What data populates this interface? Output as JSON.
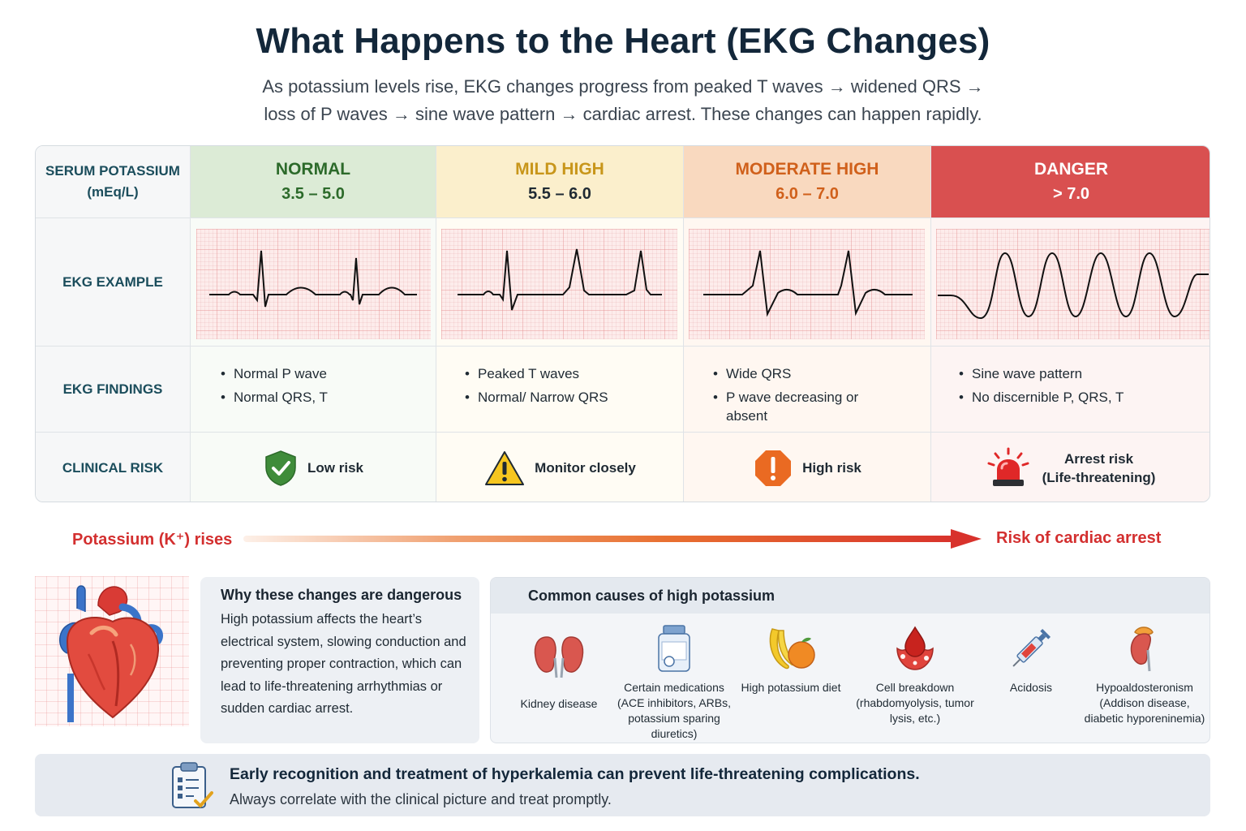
{
  "title": "What Happens to the Heart (EKG Changes)",
  "subtitle_line1": "As potassium levels rise, EKG changes progress from peaked T waves → widened QRS →",
  "subtitle_line2": "loss of P waves → sine wave pattern → cardiac arrest. These changes can happen rapidly.",
  "row_labels": {
    "potassium_line1": "SERUM POTASSIUM",
    "potassium_line2": "(mEq/L)",
    "ekg_example": "EKG EXAMPLE",
    "ekg_findings": "EKG FINDINGS",
    "clinical_risk": "CLINICAL RISK"
  },
  "stages": [
    {
      "level": "NORMAL",
      "range": "3.5 – 5.0",
      "findings": [
        "Normal P wave",
        "Normal QRS, T"
      ],
      "risk": "Low risk",
      "icon": "shield-check-icon"
    },
    {
      "level": "MILD HIGH",
      "range": "5.5 – 6.0",
      "findings": [
        "Peaked T waves",
        "Normal/ Narrow QRS"
      ],
      "risk": "Monitor closely",
      "icon": "warning-triangle-icon"
    },
    {
      "level": "MODERATE HIGH",
      "range": "6.0 – 7.0",
      "findings": [
        "Wide QRS",
        "P wave decreasing or absent"
      ],
      "risk": "High risk",
      "icon": "alert-octagon-icon"
    },
    {
      "level": "DANGER",
      "range": "> 7.0",
      "findings": [
        "Sine wave pattern",
        "No discernible P, QRS, T"
      ],
      "risk_line1": "Arrest risk",
      "risk_line2": "(Life-threatening)",
      "icon": "alarm-siren-icon"
    }
  ],
  "stage_colors": {
    "normal": "#2c6a2a",
    "mild": "#c8961a",
    "moderate": "#d0601b",
    "danger": "#d95050"
  },
  "arrow": {
    "left": "Potassium (K⁺) rises",
    "right": "Risk of cardiac arrest"
  },
  "why": {
    "title": "Why these changes are dangerous",
    "body": "High potassium affects the heart’s electrical system, slowing conduction and preventing proper contraction, which can lead to life-threatening arrhythmias or sudden cardiac arrest."
  },
  "causes": {
    "title": "Common causes of high potassium",
    "items": [
      {
        "label": "Kidney disease",
        "icon": "kidneys-icon"
      },
      {
        "label": "Certain medications (ACE inhibitors, ARBs, potassium sparing diuretics)",
        "icon": "medication-bottle-icon"
      },
      {
        "label": "High potassium diet",
        "icon": "fruit-icon"
      },
      {
        "label": "Cell breakdown (rhabdomyolysis, tumor lysis, etc.)",
        "icon": "cell-breakdown-icon"
      },
      {
        "label": "Acidosis",
        "icon": "syringe-icon"
      },
      {
        "label": "Hypoaldosteronism (Addison disease, diabetic hyporeninemia)",
        "icon": "adrenal-kidney-icon"
      }
    ]
  },
  "footer": {
    "line1": "Early recognition and treatment of hyperkalemia can prevent life-threatening complications.",
    "line2": "Always correlate with the clinical picture and treat promptly."
  }
}
